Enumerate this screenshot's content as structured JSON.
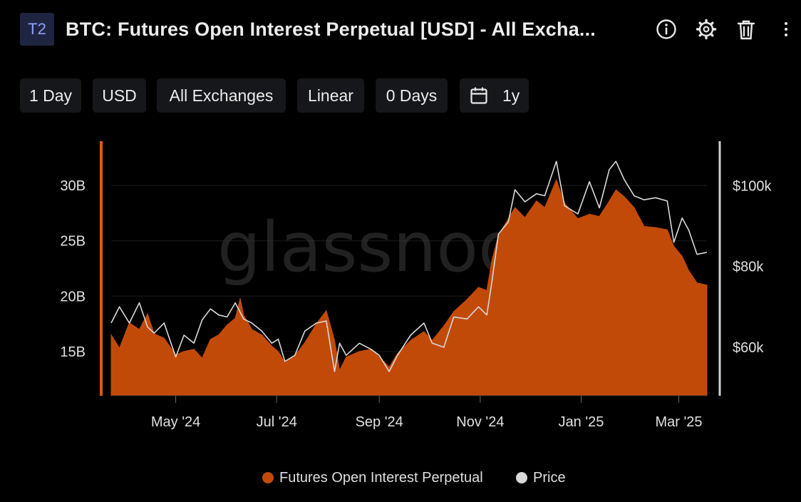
{
  "header": {
    "badge": "T2",
    "title": "BTC: Futures Open Interest Perpetual [USD] - All Excha...",
    "icons": [
      "info-icon",
      "gear-icon",
      "trash-icon",
      "more-vertical-icon"
    ]
  },
  "toolbar": {
    "resolution": "1 Day",
    "currency": "USD",
    "exchanges": "All Exchanges",
    "scale": "Linear",
    "moving_average": "0 Days",
    "range": "1y",
    "range_icon": "calendar-icon"
  },
  "watermark": "glassnode",
  "colors": {
    "background": "#000000",
    "open_interest": "#c24a08",
    "price": "#d9d9d9",
    "range_marker": "#e05a10",
    "grid": "#1c1c1c"
  },
  "chart_data": {
    "type": "area",
    "x_tick_labels": [
      "May '24",
      "Jul '24",
      "Sep '24",
      "Nov '24",
      "Jan '25",
      "Mar '25"
    ],
    "x_tick_dates": [
      "2024-05-01",
      "2024-07-01",
      "2024-09-01",
      "2024-11-01",
      "2025-01-01",
      "2025-03-01"
    ],
    "x_range": [
      "2024-03-23",
      "2025-03-18"
    ],
    "y_left": {
      "ticks": [
        15,
        20,
        25,
        30
      ],
      "tick_labels": [
        "15B",
        "20B",
        "25B",
        "30B"
      ],
      "range": [
        11,
        34
      ],
      "unit": "B USD"
    },
    "y_right": {
      "ticks": [
        60000,
        80000,
        100000
      ],
      "tick_labels": [
        "$60k",
        "$80k",
        "$100k"
      ],
      "range": [
        48000,
        111000
      ]
    },
    "grid": true,
    "legend_position": "bottom",
    "series": [
      {
        "name": "Futures Open Interest Perpetual",
        "axis": "left",
        "type": "area",
        "points": [
          [
            "2024-03-23",
            16.5
          ],
          [
            "2024-03-28",
            15.3
          ],
          [
            "2024-04-03",
            17.6
          ],
          [
            "2024-04-09",
            17.0
          ],
          [
            "2024-04-14",
            18.4
          ],
          [
            "2024-04-18",
            16.6
          ],
          [
            "2024-04-24",
            16.2
          ],
          [
            "2024-05-01",
            14.7
          ],
          [
            "2024-05-06",
            15.0
          ],
          [
            "2024-05-12",
            15.2
          ],
          [
            "2024-05-17",
            14.4
          ],
          [
            "2024-05-22",
            16.1
          ],
          [
            "2024-05-27",
            16.5
          ],
          [
            "2024-06-01",
            17.4
          ],
          [
            "2024-06-06",
            18.0
          ],
          [
            "2024-06-09",
            19.8
          ],
          [
            "2024-06-11",
            18.3
          ],
          [
            "2024-06-16",
            17.0
          ],
          [
            "2024-06-22",
            16.5
          ],
          [
            "2024-06-28",
            15.5
          ],
          [
            "2024-07-02",
            15.0
          ],
          [
            "2024-07-06",
            14.0
          ],
          [
            "2024-07-12",
            14.6
          ],
          [
            "2024-07-18",
            15.8
          ],
          [
            "2024-07-25",
            17.5
          ],
          [
            "2024-07-31",
            18.7
          ],
          [
            "2024-08-05",
            16.0
          ],
          [
            "2024-08-08",
            13.3
          ],
          [
            "2024-08-12",
            14.5
          ],
          [
            "2024-08-20",
            15.0
          ],
          [
            "2024-08-27",
            15.2
          ],
          [
            "2024-09-01",
            14.5
          ],
          [
            "2024-09-07",
            13.6
          ],
          [
            "2024-09-12",
            14.8
          ],
          [
            "2024-09-20",
            16.0
          ],
          [
            "2024-09-28",
            16.8
          ],
          [
            "2024-10-03",
            16.0
          ],
          [
            "2024-10-10",
            17.3
          ],
          [
            "2024-10-16",
            18.6
          ],
          [
            "2024-10-24",
            19.7
          ],
          [
            "2024-10-31",
            20.8
          ],
          [
            "2024-11-05",
            20.5
          ],
          [
            "2024-11-08",
            23.2
          ],
          [
            "2024-11-12",
            25.5
          ],
          [
            "2024-11-18",
            27.0
          ],
          [
            "2024-11-22",
            28.0
          ],
          [
            "2024-11-28",
            27.1
          ],
          [
            "2024-12-05",
            28.6
          ],
          [
            "2024-12-10",
            28.0
          ],
          [
            "2024-12-17",
            30.5
          ],
          [
            "2024-12-22",
            28.4
          ],
          [
            "2024-12-30",
            27.0
          ],
          [
            "2025-01-06",
            27.4
          ],
          [
            "2025-01-12",
            27.2
          ],
          [
            "2025-01-18",
            28.6
          ],
          [
            "2025-01-22",
            29.6
          ],
          [
            "2025-01-27",
            29.0
          ],
          [
            "2025-02-02",
            28.0
          ],
          [
            "2025-02-08",
            26.3
          ],
          [
            "2025-02-15",
            26.2
          ],
          [
            "2025-02-22",
            26.0
          ],
          [
            "2025-02-26",
            24.5
          ],
          [
            "2025-03-03",
            23.6
          ],
          [
            "2025-03-07",
            22.3
          ],
          [
            "2025-03-12",
            21.2
          ],
          [
            "2025-03-18",
            21.0
          ]
        ]
      },
      {
        "name": "Price",
        "axis": "right",
        "type": "line",
        "points": [
          [
            "2024-03-23",
            66000
          ],
          [
            "2024-03-28",
            70000
          ],
          [
            "2024-04-03",
            66000
          ],
          [
            "2024-04-09",
            71000
          ],
          [
            "2024-04-14",
            65000
          ],
          [
            "2024-04-18",
            63500
          ],
          [
            "2024-04-24",
            66000
          ],
          [
            "2024-05-01",
            57600
          ],
          [
            "2024-05-06",
            63000
          ],
          [
            "2024-05-12",
            61000
          ],
          [
            "2024-05-17",
            66800
          ],
          [
            "2024-05-22",
            69500
          ],
          [
            "2024-05-27",
            68000
          ],
          [
            "2024-06-01",
            67500
          ],
          [
            "2024-06-06",
            71000
          ],
          [
            "2024-06-11",
            67000
          ],
          [
            "2024-06-16",
            66000
          ],
          [
            "2024-06-22",
            64000
          ],
          [
            "2024-06-28",
            61000
          ],
          [
            "2024-07-02",
            62000
          ],
          [
            "2024-07-06",
            56500
          ],
          [
            "2024-07-12",
            58000
          ],
          [
            "2024-07-18",
            64000
          ],
          [
            "2024-07-25",
            66000
          ],
          [
            "2024-07-31",
            66500
          ],
          [
            "2024-08-05",
            54000
          ],
          [
            "2024-08-08",
            61000
          ],
          [
            "2024-08-12",
            58000
          ],
          [
            "2024-08-20",
            61000
          ],
          [
            "2024-08-27",
            59500
          ],
          [
            "2024-09-01",
            58000
          ],
          [
            "2024-09-07",
            54000
          ],
          [
            "2024-09-12",
            58000
          ],
          [
            "2024-09-20",
            63000
          ],
          [
            "2024-09-28",
            66000
          ],
          [
            "2024-10-03",
            61000
          ],
          [
            "2024-10-10",
            60000
          ],
          [
            "2024-10-16",
            67500
          ],
          [
            "2024-10-24",
            67000
          ],
          [
            "2024-10-31",
            70000
          ],
          [
            "2024-11-05",
            68000
          ],
          [
            "2024-11-08",
            76000
          ],
          [
            "2024-11-12",
            88000
          ],
          [
            "2024-11-18",
            91000
          ],
          [
            "2024-11-22",
            99000
          ],
          [
            "2024-11-28",
            96000
          ],
          [
            "2024-12-05",
            98000
          ],
          [
            "2024-12-10",
            97500
          ],
          [
            "2024-12-17",
            106000
          ],
          [
            "2024-12-22",
            95000
          ],
          [
            "2024-12-30",
            93000
          ],
          [
            "2025-01-06",
            101000
          ],
          [
            "2025-01-12",
            94500
          ],
          [
            "2025-01-18",
            104000
          ],
          [
            "2025-01-22",
            106000
          ],
          [
            "2025-01-27",
            101500
          ],
          [
            "2025-02-02",
            97500
          ],
          [
            "2025-02-08",
            96500
          ],
          [
            "2025-02-15",
            97000
          ],
          [
            "2025-02-22",
            96200
          ],
          [
            "2025-02-26",
            86000
          ],
          [
            "2025-03-03",
            92000
          ],
          [
            "2025-03-07",
            89000
          ],
          [
            "2025-03-12",
            83000
          ],
          [
            "2025-03-18",
            83500
          ]
        ]
      }
    ]
  }
}
